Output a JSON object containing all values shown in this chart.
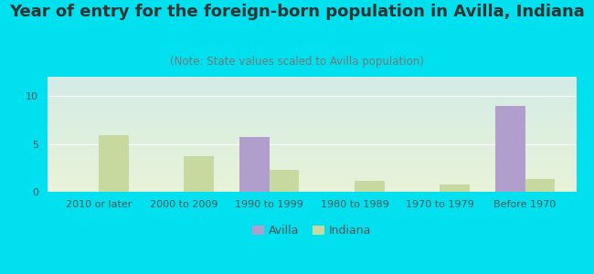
{
  "title": "Year of entry for the foreign-born population in Avilla, Indiana",
  "subtitle": "(Note: State values scaled to Avilla population)",
  "categories": [
    "2010 or later",
    "2000 to 2009",
    "1990 to 1999",
    "1980 to 1989",
    "1970 to 1979",
    "Before 1970"
  ],
  "avilla_values": [
    0,
    0,
    5.7,
    0,
    0,
    9.0
  ],
  "indiana_values": [
    5.9,
    3.7,
    2.3,
    1.1,
    0.8,
    1.3
  ],
  "avilla_color": "#b09fcc",
  "indiana_color": "#c8d9a0",
  "background_outer": "#00e0ef",
  "ylim": [
    0,
    12
  ],
  "yticks": [
    0,
    5,
    10
  ],
  "bar_width": 0.35,
  "title_fontsize": 13,
  "subtitle_fontsize": 8.5,
  "tick_fontsize": 8,
  "legend_fontsize": 9
}
